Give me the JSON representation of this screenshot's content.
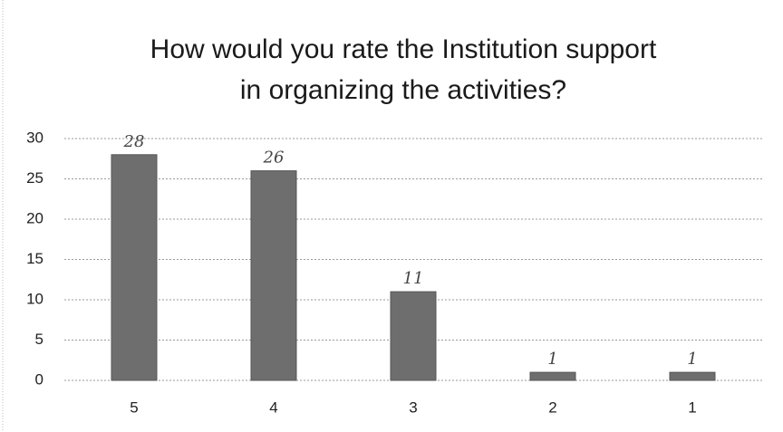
{
  "chart_data": {
    "type": "bar",
    "title": [
      "How would you rate the Institution support",
      "in organizing the activities?"
    ],
    "categories": [
      "5",
      "4",
      "3",
      "2",
      "1"
    ],
    "values": [
      28,
      26,
      11,
      1,
      1
    ],
    "color": "#6e6e6e",
    "ylim": [
      0,
      30
    ],
    "yticks": [
      0,
      5,
      10,
      15,
      20,
      25,
      30
    ],
    "grid": true
  }
}
